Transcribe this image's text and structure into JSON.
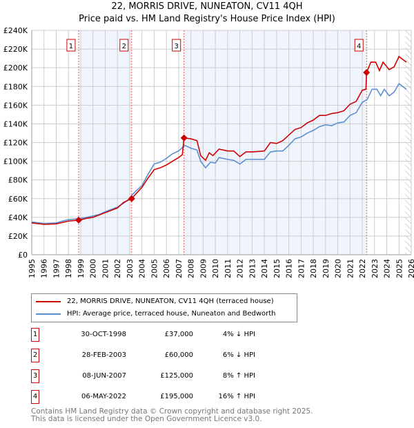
{
  "title": "22, MORRIS DRIVE, NUNEATON, CV11 4QH",
  "subtitle": "Price paid vs. HM Land Registry's House Price Index (HPI)",
  "chart_data": {
    "type": "line",
    "title": "22, MORRIS DRIVE, NUNEATON, CV11 4QH",
    "subtitle": "Price paid vs. HM Land Registry's House Price Index (HPI)",
    "xlim": [
      1995,
      2026
    ],
    "ylim": [
      0,
      240000
    ],
    "grid": true,
    "xticks": [
      "1995",
      "1996",
      "1997",
      "1998",
      "1999",
      "2000",
      "2001",
      "2002",
      "2003",
      "2004",
      "2005",
      "2006",
      "2007",
      "2008",
      "2009",
      "2010",
      "2011",
      "2012",
      "2013",
      "2014",
      "2015",
      "2016",
      "2017",
      "2018",
      "2019",
      "2020",
      "2021",
      "2022",
      "2023",
      "2024",
      "2025",
      "2026"
    ],
    "yticks": [
      "£0",
      "£20K",
      "£40K",
      "£60K",
      "£80K",
      "£100K",
      "£120K",
      "£140K",
      "£160K",
      "£180K",
      "£200K",
      "£220K",
      "£240K"
    ],
    "colors": {
      "property": "#cc0000",
      "hpi": "#5b8fd0"
    },
    "series": [
      {
        "name": "22, MORRIS DRIVE, NUNEATON, CV11 4QH (terraced house)",
        "key": "property",
        "x": [
          1995,
          1996,
          1997,
          1998,
          1998.83,
          1999.5,
          2000,
          2001,
          2002,
          2002.5,
          2003.16,
          2003.5,
          2004,
          2004.5,
          2005,
          2005.5,
          2006,
          2006.5,
          2007,
          2007.3,
          2007.44,
          2008,
          2008.5,
          2008.8,
          2009.2,
          2009.5,
          2009.8,
          2010.3,
          2011,
          2011.5,
          2012,
          2012.5,
          2013,
          2014,
          2014.5,
          2015,
          2015.5,
          2016,
          2016.5,
          2017,
          2017.5,
          2018,
          2018.5,
          2019,
          2019.5,
          2020,
          2020.5,
          2021,
          2021.5,
          2022,
          2022.3,
          2022.35,
          2022.7,
          2023.1,
          2023.4,
          2023.7,
          2024.2,
          2024.6,
          2025,
          2025.3,
          2025.6
        ],
        "y": [
          34,
          32.5,
          33,
          36,
          37,
          39,
          40,
          45,
          50,
          56,
          60,
          65,
          72,
          82,
          91,
          93,
          96,
          100,
          104,
          107,
          125,
          124,
          122,
          106,
          101,
          109,
          106,
          113,
          111,
          111,
          105,
          110,
          110,
          111,
          120,
          119,
          122,
          128,
          134,
          136,
          141,
          144,
          149,
          149,
          151,
          152,
          154,
          161,
          164,
          176,
          177,
          195,
          206,
          206,
          197,
          206,
          198,
          201,
          212,
          209,
          206
        ]
      },
      {
        "name": "HPI: Average price, terraced house, Nuneaton and Bedworth",
        "key": "hpi",
        "x": [
          1995,
          1996,
          1997,
          1997.5,
          1998,
          1998.8,
          1999.5,
          2000,
          2000.5,
          2001,
          2001.5,
          2002,
          2002.5,
          2003,
          2003.2,
          2003.5,
          2004,
          2004.5,
          2005,
          2005.5,
          2006,
          2006.5,
          2007,
          2007.5,
          2008,
          2008.5,
          2008.8,
          2009.2,
          2009.6,
          2010,
          2010.3,
          2011,
          2011.5,
          2012,
          2012.5,
          2013,
          2014,
          2014.5,
          2015,
          2015.5,
          2016,
          2016.5,
          2017,
          2017.5,
          2018,
          2018.5,
          2019,
          2019.5,
          2020,
          2020.5,
          2021,
          2021.5,
          2022,
          2022.4,
          2022.8,
          2023.2,
          2023.5,
          2023.8,
          2024.2,
          2024.6,
          2025,
          2025.3,
          2025.6
        ],
        "y": [
          35,
          33.5,
          34,
          36,
          37.5,
          38.5,
          40,
          41.5,
          43,
          46,
          48.5,
          51,
          55,
          60,
          64,
          68,
          74,
          86,
          97,
          99,
          103,
          108,
          111,
          117,
          114,
          112,
          100,
          93,
          99,
          98,
          104,
          102,
          101,
          97,
          102,
          102,
          102,
          110,
          111,
          111,
          117,
          124,
          126,
          130,
          133,
          137,
          139,
          138,
          141,
          142,
          149,
          152,
          163,
          166,
          177,
          177,
          170,
          177,
          170,
          174,
          183,
          180,
          177
        ]
      }
    ],
    "y_unit_multiplier": 1000,
    "sales": [
      {
        "n": "1",
        "x": 1998.83,
        "y": 37000
      },
      {
        "n": "2",
        "x": 2003.16,
        "y": 60000
      },
      {
        "n": "3",
        "x": 2007.44,
        "y": 125000
      },
      {
        "n": "4",
        "x": 2022.35,
        "y": 195000
      }
    ],
    "shaded_ranges": [
      [
        1998.83,
        2003.16
      ],
      [
        2007.44,
        2022.35
      ]
    ],
    "forecast_hatch_from": 2025.5,
    "legend_position": "below"
  },
  "legend": [
    "22, MORRIS DRIVE, NUNEATON, CV11 4QH (terraced house)",
    "HPI: Average price, terraced house, Nuneaton and Bedworth"
  ],
  "transactions": [
    {
      "n": "1",
      "date": "30-OCT-1998",
      "price": "£37,000",
      "hpi": "4% ↓ HPI"
    },
    {
      "n": "2",
      "date": "28-FEB-2003",
      "price": "£60,000",
      "hpi": "6% ↓ HPI"
    },
    {
      "n": "3",
      "date": "08-JUN-2007",
      "price": "£125,000",
      "hpi": "8% ↑ HPI"
    },
    {
      "n": "4",
      "date": "06-MAY-2022",
      "price": "£195,000",
      "hpi": "16% ↑ HPI"
    }
  ],
  "footer": [
    "Contains HM Land Registry data © Crown copyright and database right 2025.",
    "This data is licensed under the Open Government Licence v3.0."
  ]
}
